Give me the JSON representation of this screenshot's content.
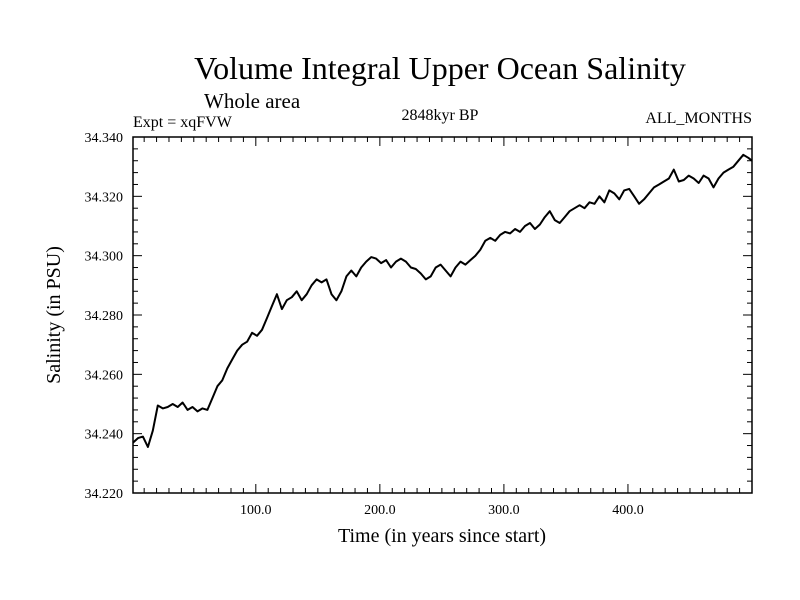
{
  "chart_data": {
    "type": "line",
    "title": "Volume Integral Upper Ocean Salinity",
    "subtitle": "Whole area",
    "experiment_label": "Expt = xqFVW",
    "period_label": "2848kyr BP",
    "months_label": "ALL_MONTHS",
    "xlabel": "Time (in years since start)",
    "ylabel": "Salinity (in PSU)",
    "xlim": [
      1,
      500
    ],
    "ylim": [
      34.22,
      34.34
    ],
    "x_ticks": [
      {
        "value": 100,
        "label": "100.0"
      },
      {
        "value": 200,
        "label": "200.0"
      },
      {
        "value": 300,
        "label": "300.0"
      },
      {
        "value": 400,
        "label": "400.0"
      }
    ],
    "y_ticks": [
      {
        "value": 34.22,
        "label": "34.220"
      },
      {
        "value": 34.24,
        "label": "34.240"
      },
      {
        "value": 34.26,
        "label": "34.260"
      },
      {
        "value": 34.28,
        "label": "34.280"
      },
      {
        "value": 34.3,
        "label": "34.300"
      },
      {
        "value": 34.32,
        "label": "34.320"
      },
      {
        "value": 34.34,
        "label": "34.340"
      }
    ],
    "series": [
      {
        "name": "Salinity",
        "x": [
          1,
          5,
          9,
          13,
          17,
          21,
          25,
          29,
          33,
          37,
          41,
          45,
          49,
          53,
          57,
          61,
          65,
          69,
          73,
          77,
          81,
          85,
          89,
          93,
          97,
          101,
          105,
          109,
          113,
          117,
          121,
          125,
          129,
          133,
          137,
          141,
          145,
          149,
          153,
          157,
          161,
          165,
          169,
          173,
          177,
          181,
          185,
          189,
          193,
          197,
          201,
          205,
          209,
          213,
          217,
          221,
          225,
          229,
          233,
          237,
          241,
          245,
          249,
          253,
          257,
          261,
          265,
          269,
          273,
          277,
          281,
          285,
          289,
          293,
          297,
          301,
          305,
          309,
          313,
          317,
          321,
          325,
          329,
          333,
          337,
          341,
          345,
          349,
          353,
          357,
          361,
          365,
          369,
          373,
          377,
          381,
          385,
          389,
          393,
          397,
          401,
          405,
          409,
          413,
          417,
          421,
          425,
          429,
          433,
          437,
          441,
          445,
          449,
          453,
          457,
          461,
          465,
          469,
          473,
          477,
          481,
          485,
          489,
          493,
          497,
          500
        ],
        "values": [
          34.237,
          34.2385,
          34.239,
          34.2355,
          34.241,
          34.2495,
          34.2485,
          34.249,
          34.25,
          34.249,
          34.2505,
          34.248,
          34.249,
          34.2475,
          34.2485,
          34.248,
          34.252,
          34.256,
          34.258,
          34.262,
          34.265,
          34.268,
          34.27,
          34.271,
          34.274,
          34.273,
          34.275,
          34.279,
          34.283,
          34.287,
          34.282,
          34.285,
          34.286,
          34.288,
          34.285,
          34.287,
          34.29,
          34.292,
          34.291,
          34.292,
          34.287,
          34.285,
          34.288,
          34.293,
          34.295,
          34.293,
          34.296,
          34.298,
          34.2995,
          34.299,
          34.2975,
          34.2985,
          34.296,
          34.298,
          34.299,
          34.298,
          34.296,
          34.2955,
          34.294,
          34.292,
          34.293,
          34.296,
          34.297,
          34.295,
          34.293,
          34.296,
          34.298,
          34.297,
          34.2985,
          34.3,
          34.302,
          34.305,
          34.306,
          34.305,
          34.307,
          34.308,
          34.3075,
          34.309,
          34.308,
          34.31,
          34.311,
          34.309,
          34.3105,
          34.313,
          34.315,
          34.312,
          34.311,
          34.313,
          34.315,
          34.316,
          34.317,
          34.316,
          34.318,
          34.3175,
          34.32,
          34.318,
          34.322,
          34.321,
          34.319,
          34.322,
          34.3225,
          34.32,
          34.3175,
          34.319,
          34.321,
          34.323,
          34.324,
          34.325,
          34.326,
          34.329,
          34.325,
          34.3255,
          34.327,
          34.326,
          34.3245,
          34.327,
          34.326,
          34.323,
          34.326,
          34.328,
          34.329,
          34.33,
          34.332,
          34.334,
          34.333,
          34.332
        ]
      }
    ]
  }
}
